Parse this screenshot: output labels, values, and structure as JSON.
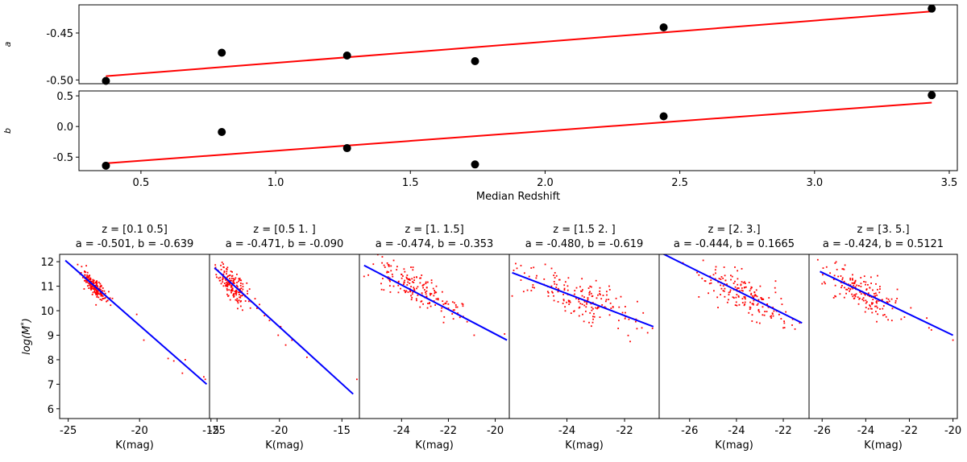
{
  "chart_data": [
    {
      "type": "scatter",
      "ylabel": "a",
      "xlim": [
        0.27,
        3.53
      ],
      "ylim": [
        -0.504,
        -0.42
      ],
      "yticks": [
        -0.5,
        -0.45
      ],
      "ytick_labels": [
        "-0.50",
        "-0.45"
      ],
      "points": [
        {
          "x": 0.37,
          "y": -0.501
        },
        {
          "x": 0.8,
          "y": -0.471
        },
        {
          "x": 1.265,
          "y": -0.474
        },
        {
          "x": 1.74,
          "y": -0.48
        },
        {
          "x": 2.44,
          "y": -0.444
        },
        {
          "x": 3.435,
          "y": -0.424
        }
      ],
      "fit_line": {
        "x": [
          0.37,
          3.435
        ],
        "y": [
          -0.496,
          -0.427
        ]
      },
      "marker_color": "#000000",
      "fit_color": "#ff0000"
    },
    {
      "type": "scatter",
      "ylabel": "b",
      "xlabel": "Median Redshift",
      "xlim": [
        0.27,
        3.53
      ],
      "ylim": [
        -0.72,
        0.58
      ],
      "yticks": [
        -0.5,
        0.0,
        0.5
      ],
      "ytick_labels": [
        "-0.5",
        "0.0",
        "0.5"
      ],
      "xticks": [
        0.5,
        1.0,
        1.5,
        2.0,
        2.5,
        3.0,
        3.5
      ],
      "xtick_labels": [
        "0.5",
        "1.0",
        "1.5",
        "2.0",
        "2.5",
        "3.0",
        "3.5"
      ],
      "points": [
        {
          "x": 0.37,
          "y": -0.639
        },
        {
          "x": 0.8,
          "y": -0.09
        },
        {
          "x": 1.265,
          "y": -0.353
        },
        {
          "x": 1.74,
          "y": -0.619
        },
        {
          "x": 2.44,
          "y": 0.1665
        },
        {
          "x": 3.435,
          "y": 0.5121
        }
      ],
      "fit_line": {
        "x": [
          0.37,
          3.435
        ],
        "y": [
          -0.6,
          0.39
        ]
      },
      "marker_color": "#000000",
      "fit_color": "#ff0000"
    },
    {
      "type": "scatter",
      "title_lines": [
        "z = [0.1 0.5]",
        "a = -0.501, b = -0.639"
      ],
      "xlabel": "K(mag)",
      "ylabel": "log(M*)",
      "xlim": [
        -25.6,
        -15.1
      ],
      "ylim": [
        5.6,
        12.3
      ],
      "xticks": [
        -25,
        -20,
        -15
      ],
      "xtick_labels": [
        "-25",
        "-20",
        "-15"
      ],
      "yticks": [
        6,
        7,
        8,
        9,
        10,
        11,
        12
      ],
      "ytick_labels": [
        "6",
        "7",
        "8",
        "9",
        "10",
        "11",
        "12"
      ],
      "fit_line": {
        "x": [
          -25.2,
          -15.3
        ],
        "y": [
          12.05,
          7.0
        ]
      },
      "cloud": {
        "center_x": -23.2,
        "center_y": 11.0,
        "spread_x": 0.45,
        "spread_y": 0.18
      },
      "scatter_points": [
        [
          -21.9,
          10.5
        ],
        [
          -20.2,
          9.85
        ],
        [
          -19.7,
          8.8
        ],
        [
          -18.0,
          8.05
        ],
        [
          -17.6,
          7.95
        ],
        [
          -17.0,
          7.45
        ],
        [
          -16.8,
          8.0
        ],
        [
          -15.4,
          7.2
        ],
        [
          -15.5,
          7.3
        ],
        [
          -22.4,
          10.7
        ],
        [
          -22.9,
          10.85
        ]
      ],
      "point_color": "#ff0000",
      "fit_color": "#0000ff"
    },
    {
      "type": "scatter",
      "title_lines": [
        "z = [0.5 1. ]",
        "a = -0.471, b = -0.090"
      ],
      "xlabel": "K(mag)",
      "xlim": [
        -25.6,
        -13.6
      ],
      "ylim": [
        5.6,
        12.3
      ],
      "xticks": [
        -25,
        -20,
        -15
      ],
      "xtick_labels": [
        "-25",
        "-20",
        "-15"
      ],
      "fit_line": {
        "x": [
          -25.2,
          -14.1
        ],
        "y": [
          11.75,
          6.6
        ]
      },
      "cloud": {
        "center_x": -23.8,
        "center_y": 11.05,
        "spread_x": 0.7,
        "spread_y": 0.3
      },
      "scatter_points": [
        [
          -21.2,
          9.8
        ],
        [
          -20.8,
          9.6
        ],
        [
          -19.9,
          9.35
        ],
        [
          -19.5,
          8.6
        ],
        [
          -18.3,
          8.55
        ],
        [
          -17.8,
          8.1
        ],
        [
          -20.1,
          9.0
        ],
        [
          -19.0,
          8.8
        ],
        [
          -13.8,
          7.2
        ],
        [
          -21.8,
          10.1
        ],
        [
          -22.3,
          10.4
        ]
      ],
      "point_color": "#ff0000",
      "fit_color": "#0000ff"
    },
    {
      "type": "scatter",
      "title_lines": [
        "z = [1.  1.5]",
        "a = -0.474, b = -0.353"
      ],
      "xlabel": "K(mag)",
      "xlim": [
        -25.8,
        -19.4
      ],
      "ylim": [
        5.6,
        12.3
      ],
      "xticks": [
        -24,
        -22,
        -20
      ],
      "xtick_labels": [
        "-24",
        "-22",
        "-20"
      ],
      "fit_line": {
        "x": [
          -25.6,
          -19.5
        ],
        "y": [
          11.85,
          8.8
        ]
      },
      "cloud": {
        "center_x": -23.3,
        "center_y": 10.85,
        "spread_x": 0.9,
        "spread_y": 0.35
      },
      "scatter_points": [
        [
          -21.6,
          9.9
        ],
        [
          -21.2,
          9.55
        ],
        [
          -20.9,
          9.0
        ],
        [
          -19.6,
          9.05
        ],
        [
          -25.6,
          11.4
        ],
        [
          -22.0,
          10.1
        ]
      ],
      "point_color": "#ff0000",
      "fit_color": "#0000ff"
    },
    {
      "type": "scatter",
      "title_lines": [
        "z = [1.5 2. ]",
        "a = -0.480, b = -0.619"
      ],
      "xlabel": "K(mag)",
      "xlim": [
        -26.0,
        -20.8
      ],
      "ylim": [
        5.6,
        12.3
      ],
      "xticks": [
        -24,
        -22
      ],
      "xtick_labels": [
        "-24",
        "-22"
      ],
      "fit_line": {
        "x": [
          -25.9,
          -21.0
        ],
        "y": [
          11.55,
          9.35
        ]
      },
      "cloud": {
        "center_x": -23.6,
        "center_y": 10.55,
        "spread_x": 1.05,
        "spread_y": 0.4
      },
      "scatter_points": [
        [
          -21.4,
          9.3
        ],
        [
          -21.2,
          9.1
        ],
        [
          -21.6,
          9.65
        ],
        [
          -25.9,
          10.6
        ],
        [
          -22.2,
          9.6
        ]
      ],
      "point_color": "#ff0000",
      "fit_color": "#0000ff"
    },
    {
      "type": "scatter",
      "title_lines": [
        "z = [2. 3.]",
        "a = -0.444, b = 0.1665"
      ],
      "xlabel": "K(mag)",
      "xlim": [
        -27.3,
        -20.9
      ],
      "ylim": [
        5.6,
        12.3
      ],
      "xticks": [
        -26,
        -24,
        -22
      ],
      "xtick_labels": [
        "-26",
        "-24",
        "-22"
      ],
      "fit_line": {
        "x": [
          -27.3,
          -21.2
        ],
        "y": [
          12.4,
          9.5
        ]
      },
      "cloud": {
        "center_x": -23.7,
        "center_y": 10.7,
        "spread_x": 0.9,
        "spread_y": 0.35
      },
      "scatter_points": [
        [
          -21.6,
          9.65
        ],
        [
          -21.5,
          9.25
        ],
        [
          -22.0,
          9.3
        ],
        [
          -21.3,
          9.5
        ]
      ],
      "point_color": "#ff0000",
      "fit_color": "#0000ff"
    },
    {
      "type": "scatter",
      "title_lines": [
        "z = [3. 5.]",
        "a = -0.424, b = 0.5121"
      ],
      "xlabel": "K(mag)",
      "xlim": [
        -26.6,
        -19.8
      ],
      "ylim": [
        5.6,
        12.3
      ],
      "xticks": [
        -26,
        -24,
        -22,
        -20
      ],
      "xtick_labels": [
        "-26",
        "-24",
        "-22",
        "-20"
      ],
      "fit_line": {
        "x": [
          -26.1,
          -20.0
        ],
        "y": [
          11.6,
          9.0
        ]
      },
      "cloud": {
        "center_x": -24.1,
        "center_y": 10.75,
        "spread_x": 0.9,
        "spread_y": 0.35
      },
      "scatter_points": [
        [
          -26.0,
          11.1
        ],
        [
          -21.2,
          9.7
        ],
        [
          -21.1,
          9.3
        ],
        [
          -20.0,
          8.8
        ],
        [
          -22.8,
          9.6
        ]
      ],
      "point_color": "#ff0000",
      "fit_color": "#0000ff"
    }
  ]
}
